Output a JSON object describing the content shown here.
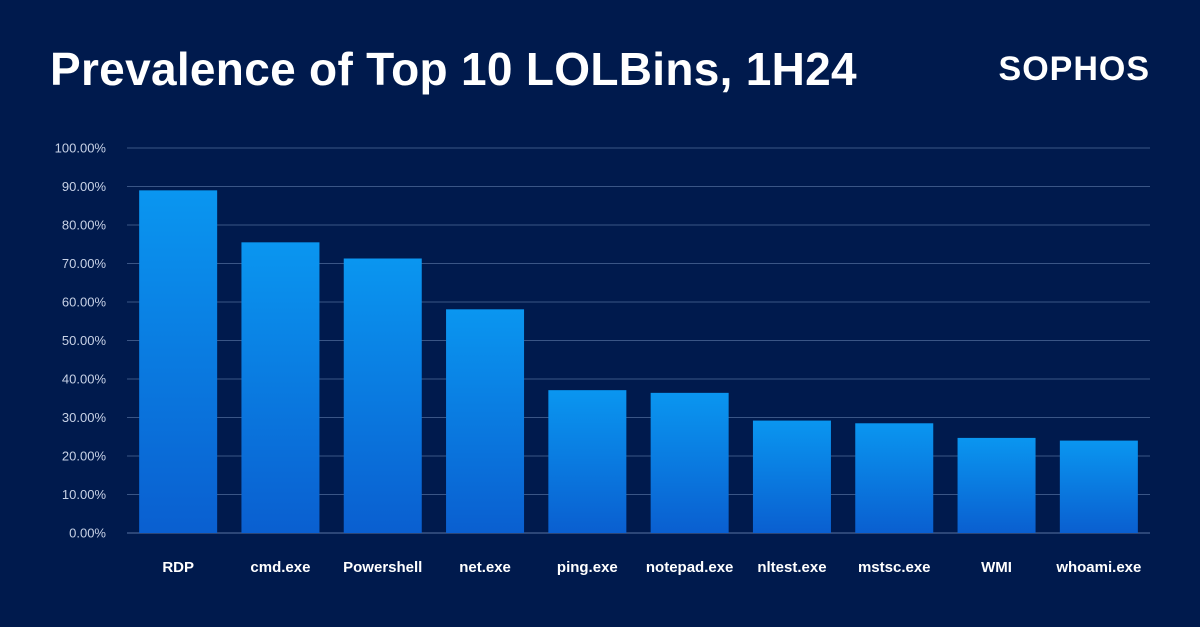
{
  "title": "Prevalence of Top 10 LOLBins, 1H24",
  "logo_text": "SOPHOS",
  "colors": {
    "background": "#001a4d",
    "bar_top": "#0a96f0",
    "bar_bottom": "#0a5fd0",
    "grid": "#3a5585"
  },
  "chart_data": {
    "type": "bar",
    "title": "Prevalence of Top 10 LOLBins, 1H24",
    "xlabel": "",
    "ylabel": "",
    "categories": [
      "RDP",
      "cmd.exe",
      "Powershell",
      "net.exe",
      "ping.exe",
      "notepad.exe",
      "nltest.exe",
      "mstsc.exe",
      "WMI",
      "whoami.exe"
    ],
    "values": [
      89.0,
      75.5,
      71.3,
      58.1,
      37.1,
      36.4,
      29.2,
      28.5,
      24.7,
      24.0
    ],
    "ylim": [
      0,
      100
    ],
    "yticks": [
      "0.00%",
      "10.00%",
      "20.00%",
      "30.00%",
      "40.00%",
      "50.00%",
      "60.00%",
      "70.00%",
      "80.00%",
      "90.00%",
      "100.00%"
    ],
    "grid": true,
    "legend": "none"
  }
}
